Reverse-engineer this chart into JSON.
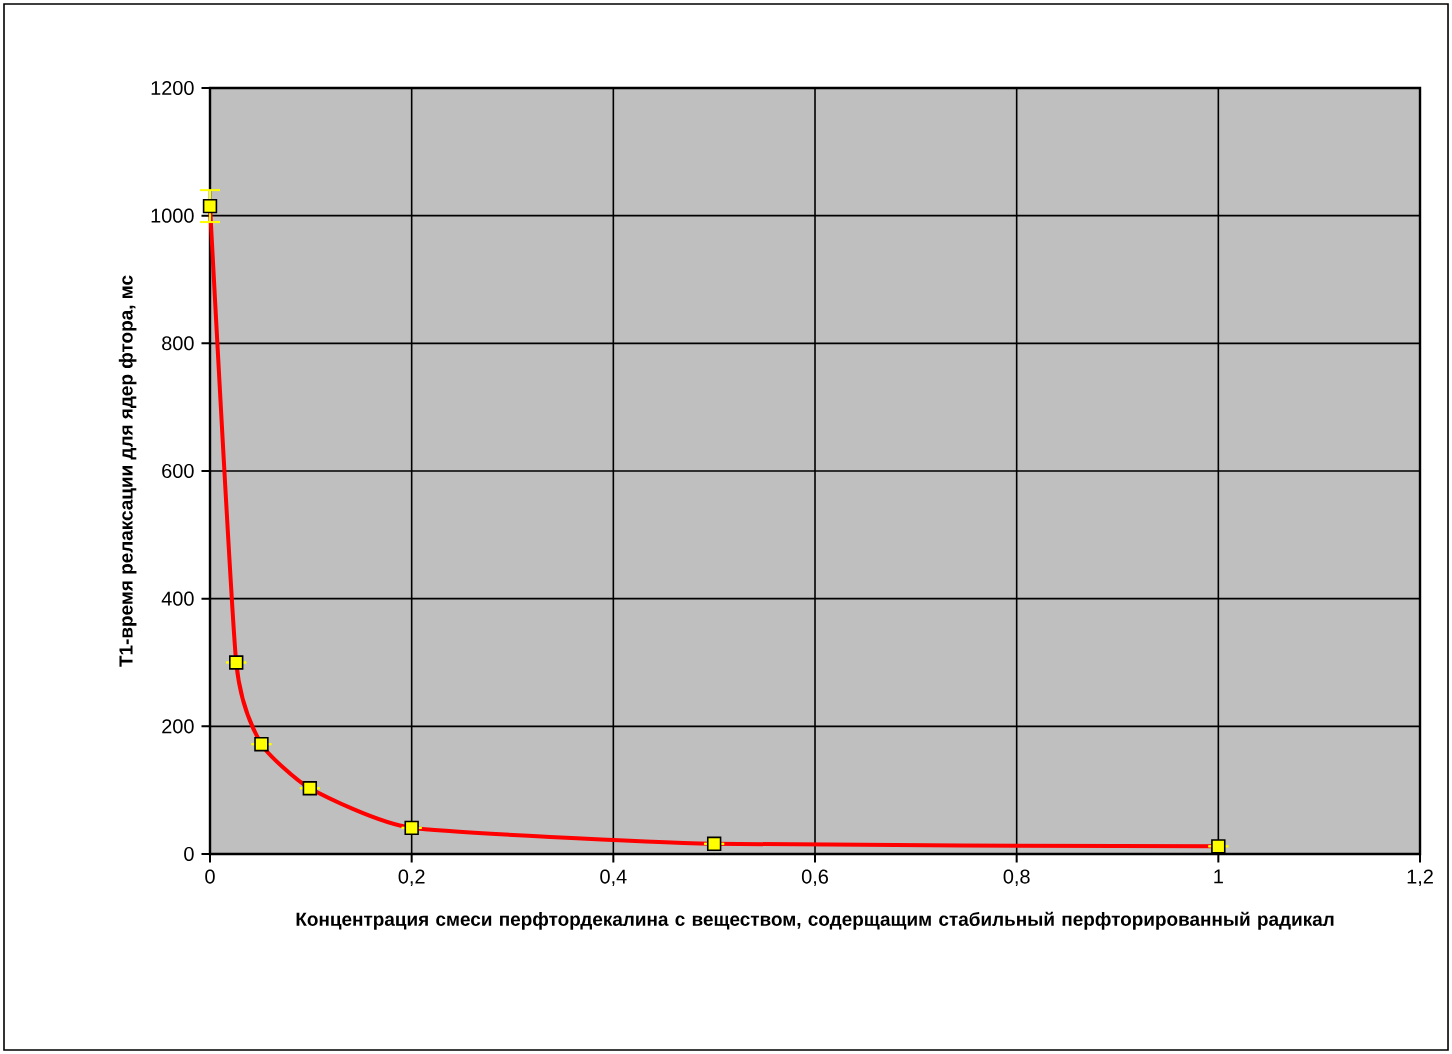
{
  "chart_data": {
    "type": "scatter",
    "xlabel": "Концентрация смеси перфтордекалина с веществом, содерщащим стабильный перфторированный радикал",
    "ylabel": "T1-время релаксации для ядер фтора, мс",
    "series": [
      {
        "type": "line",
        "color": "#ff0000",
        "x": [
          0,
          0.026,
          0.051,
          0.099,
          0.2,
          0.5,
          1
        ],
        "values": [
          1015,
          300,
          172,
          103,
          41,
          16,
          12
        ],
        "marker": "none"
      },
      {
        "color": "#ffff00",
        "x": [
          0,
          0.026,
          0.051,
          0.099,
          0.2,
          0.5,
          1
        ],
        "values": [
          1015,
          300,
          172,
          103,
          41,
          16,
          12
        ],
        "errors": [
          25,
          null,
          null,
          null,
          null,
          null,
          null
        ],
        "marker": "square"
      }
    ],
    "xlim": [
      0,
      1.2
    ],
    "xticks": [
      {
        "value": 0,
        "label": "0"
      },
      {
        "value": 0.2,
        "label": "0,2"
      },
      {
        "value": 0.4,
        "label": "0,4"
      },
      {
        "value": 0.6,
        "label": "0,6"
      },
      {
        "value": 0.8,
        "label": "0,8"
      },
      {
        "value": 1,
        "label": "1"
      },
      {
        "value": 1.2,
        "label": "1,2"
      }
    ],
    "ylim": [
      0,
      1200
    ],
    "yticks": [
      0,
      200,
      400,
      600,
      800,
      1000,
      1200
    ],
    "grid": true
  }
}
